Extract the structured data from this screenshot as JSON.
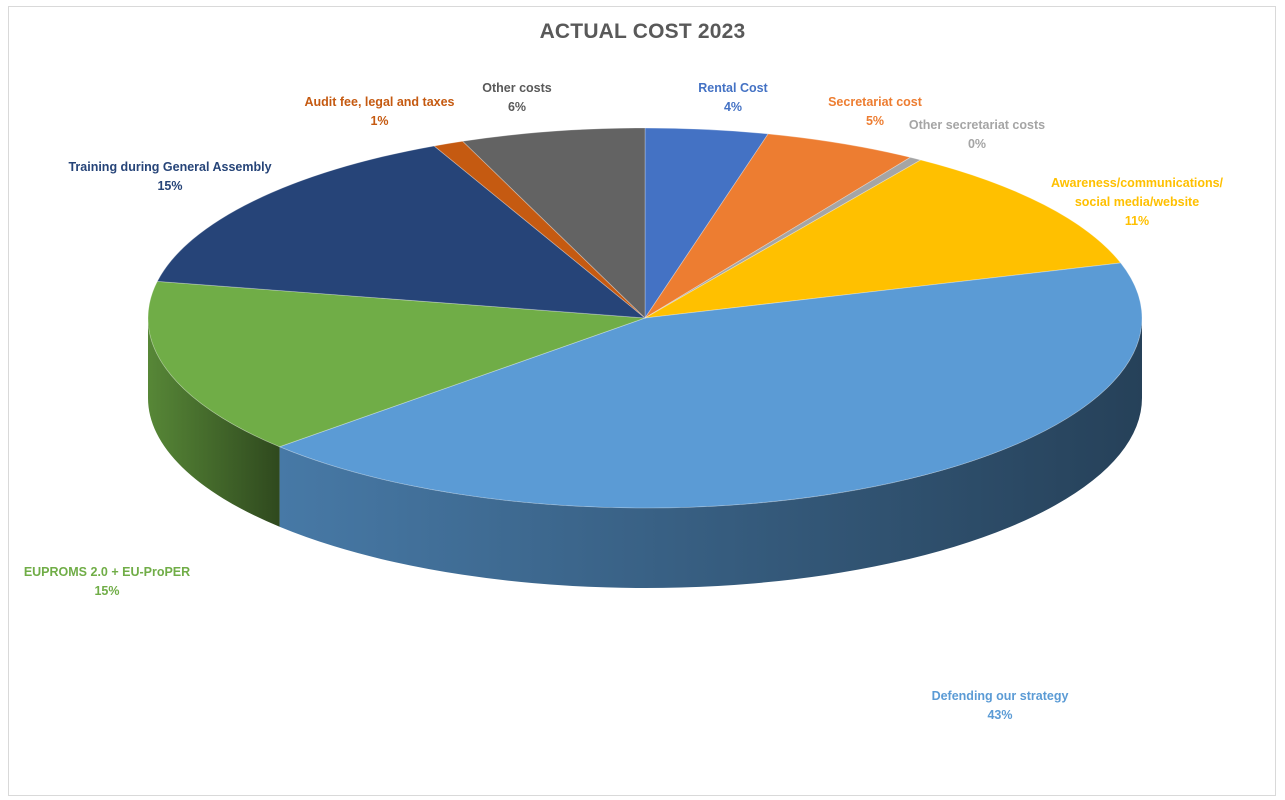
{
  "chart_data": {
    "type": "pie",
    "style": "3d-exploded-none",
    "title": "ACTUAL COST 2023",
    "slices": [
      {
        "label": "Rental Cost",
        "value": 4,
        "pct_label": "4%",
        "color": "#4472C4"
      },
      {
        "label": "Secretariat cost",
        "value": 5,
        "pct_label": "5%",
        "color": "#ED7D31"
      },
      {
        "label": "Other secretariat costs",
        "value": 0.4,
        "pct_label": "0%",
        "color": "#A5A5A5"
      },
      {
        "label": "Awareness/communications/\nsocial media/website",
        "value": 11,
        "pct_label": "11%",
        "color": "#FFC000"
      },
      {
        "label": "Defending our strategy",
        "value": 43,
        "pct_label": "43%",
        "color": "#5B9BD5"
      },
      {
        "label": "EUPROMS 2.0 + EU-ProPER",
        "value": 15,
        "pct_label": "15%",
        "color": "#70AD47"
      },
      {
        "label": "Training during General Assembly",
        "value": 15,
        "pct_label": "15%",
        "color": "#264478"
      },
      {
        "label": "Audit fee, legal and taxes",
        "value": 1,
        "pct_label": "1%",
        "color": "#C55A11"
      },
      {
        "label": "Other costs",
        "value": 6,
        "pct_label": "6%",
        "color": "#636363"
      }
    ],
    "legend": "none"
  }
}
